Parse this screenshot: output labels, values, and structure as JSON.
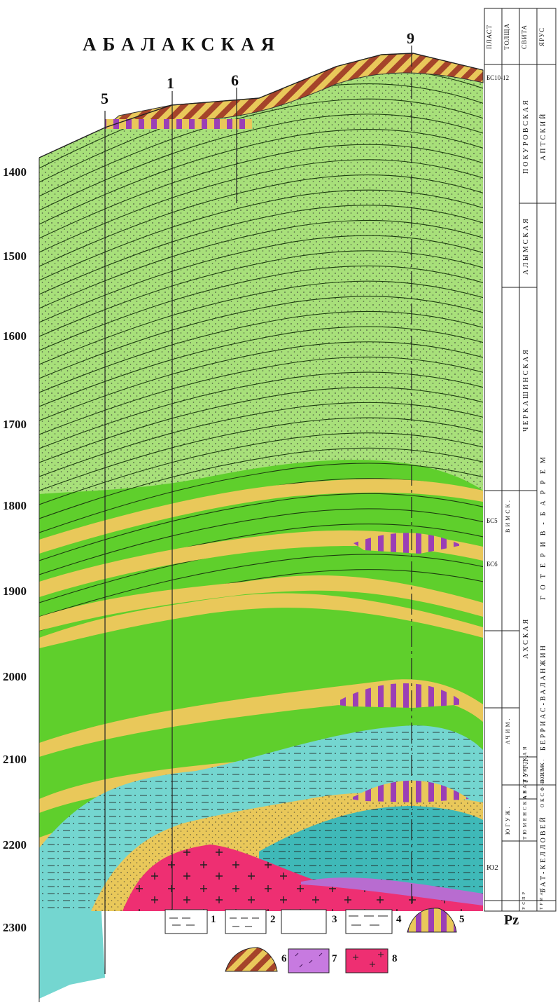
{
  "title": "АБАЛАКСКАЯ",
  "wells": [
    "5",
    "1",
    "6",
    "9"
  ],
  "depths": [
    "1400",
    "1500",
    "1600",
    "1700",
    "1800",
    "1900",
    "2000",
    "2100",
    "2200",
    "2300"
  ],
  "column_headers": {
    "plast": "ПЛАСТ",
    "tolscha": "ТОЛЩА",
    "svita": "СВИТА",
    "yarus": "ЯРУС"
  },
  "strat": {
    "svita": [
      "ПОКУРОВСКАЯ",
      "АЛЫМСКАЯ",
      "ЧЕРКАШИНСКАЯ",
      "АХСКАЯ",
      "ТУТЛ.",
      "АБАЛАКСКАЯ",
      "ТЮМЕНСКАЯ",
      "УСПР"
    ],
    "yarus": [
      "АПТСКИЙ",
      "ГОТЕРИВ-БАРРЕМ",
      "БЕРРИАС-ВАЛАНЖИН",
      "ОКСФ-КИМ.",
      "ВОЛЖ.",
      "БАТ-КЕЛЛОВЕЙ",
      "ТРИАС"
    ],
    "tolscha": [
      "ВИМСК.",
      "АЧИМ.",
      "ЮГУЖ."
    ],
    "plast": [
      "БС10-12",
      "БС5",
      "БС6",
      "Ю2"
    ]
  },
  "pz_label": "Pz",
  "legend": [
    "1",
    "2",
    "3",
    "4",
    "5",
    "6",
    "7",
    "8"
  ],
  "colors": {
    "light_green": "#a8e07a",
    "green": "#5fcf2c",
    "yellow": "#e9c85a",
    "cyan": "#74d6d0",
    "magenta": "#9b3fb6",
    "red": "#ee2f72",
    "brown": "#a5442a"
  }
}
